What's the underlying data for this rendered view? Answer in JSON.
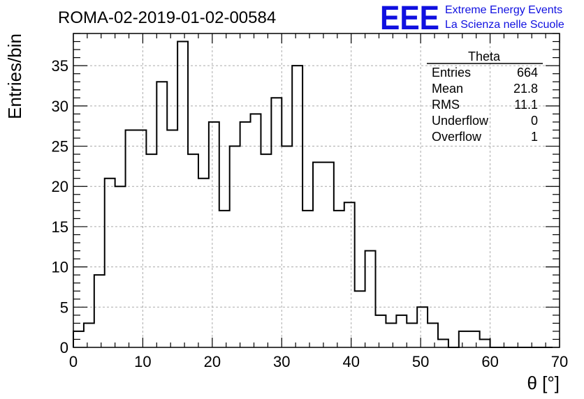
{
  "chart_data": {
    "type": "bar",
    "title": "ROMA-02-2019-01-02-00584",
    "xlabel": "θ [°]",
    "ylabel": "Entries/bin",
    "xlim": [
      0,
      70
    ],
    "ylim": [
      0,
      39
    ],
    "bin_width": 1.5,
    "x_ticks": [
      0,
      10,
      20,
      30,
      40,
      50,
      60,
      70
    ],
    "y_ticks": [
      0,
      5,
      10,
      15,
      20,
      25,
      30,
      35
    ],
    "grid": true,
    "values": [
      2,
      3,
      9,
      21,
      20,
      27,
      27,
      24,
      33,
      27,
      38,
      24,
      21,
      28,
      17,
      25,
      28,
      29,
      24,
      31,
      25,
      35,
      17,
      23,
      23,
      17,
      18,
      7,
      12,
      4,
      3,
      4,
      3,
      5,
      3,
      1,
      0,
      2,
      2,
      1,
      0,
      0,
      0,
      0,
      0,
      0
    ],
    "stats": {
      "name": "Theta",
      "rows": [
        {
          "label": "Entries",
          "value": "664"
        },
        {
          "label": "Mean",
          "value": "21.8"
        },
        {
          "label": "RMS",
          "value": "11.1"
        },
        {
          "label": "Underflow",
          "value": "0"
        },
        {
          "label": "Overflow",
          "value": "1"
        }
      ]
    }
  },
  "logo": {
    "mark": "EEE",
    "line1": "Extreme Energy Events",
    "line2": "La Scienza nelle Scuole",
    "color": "#1010e0"
  }
}
